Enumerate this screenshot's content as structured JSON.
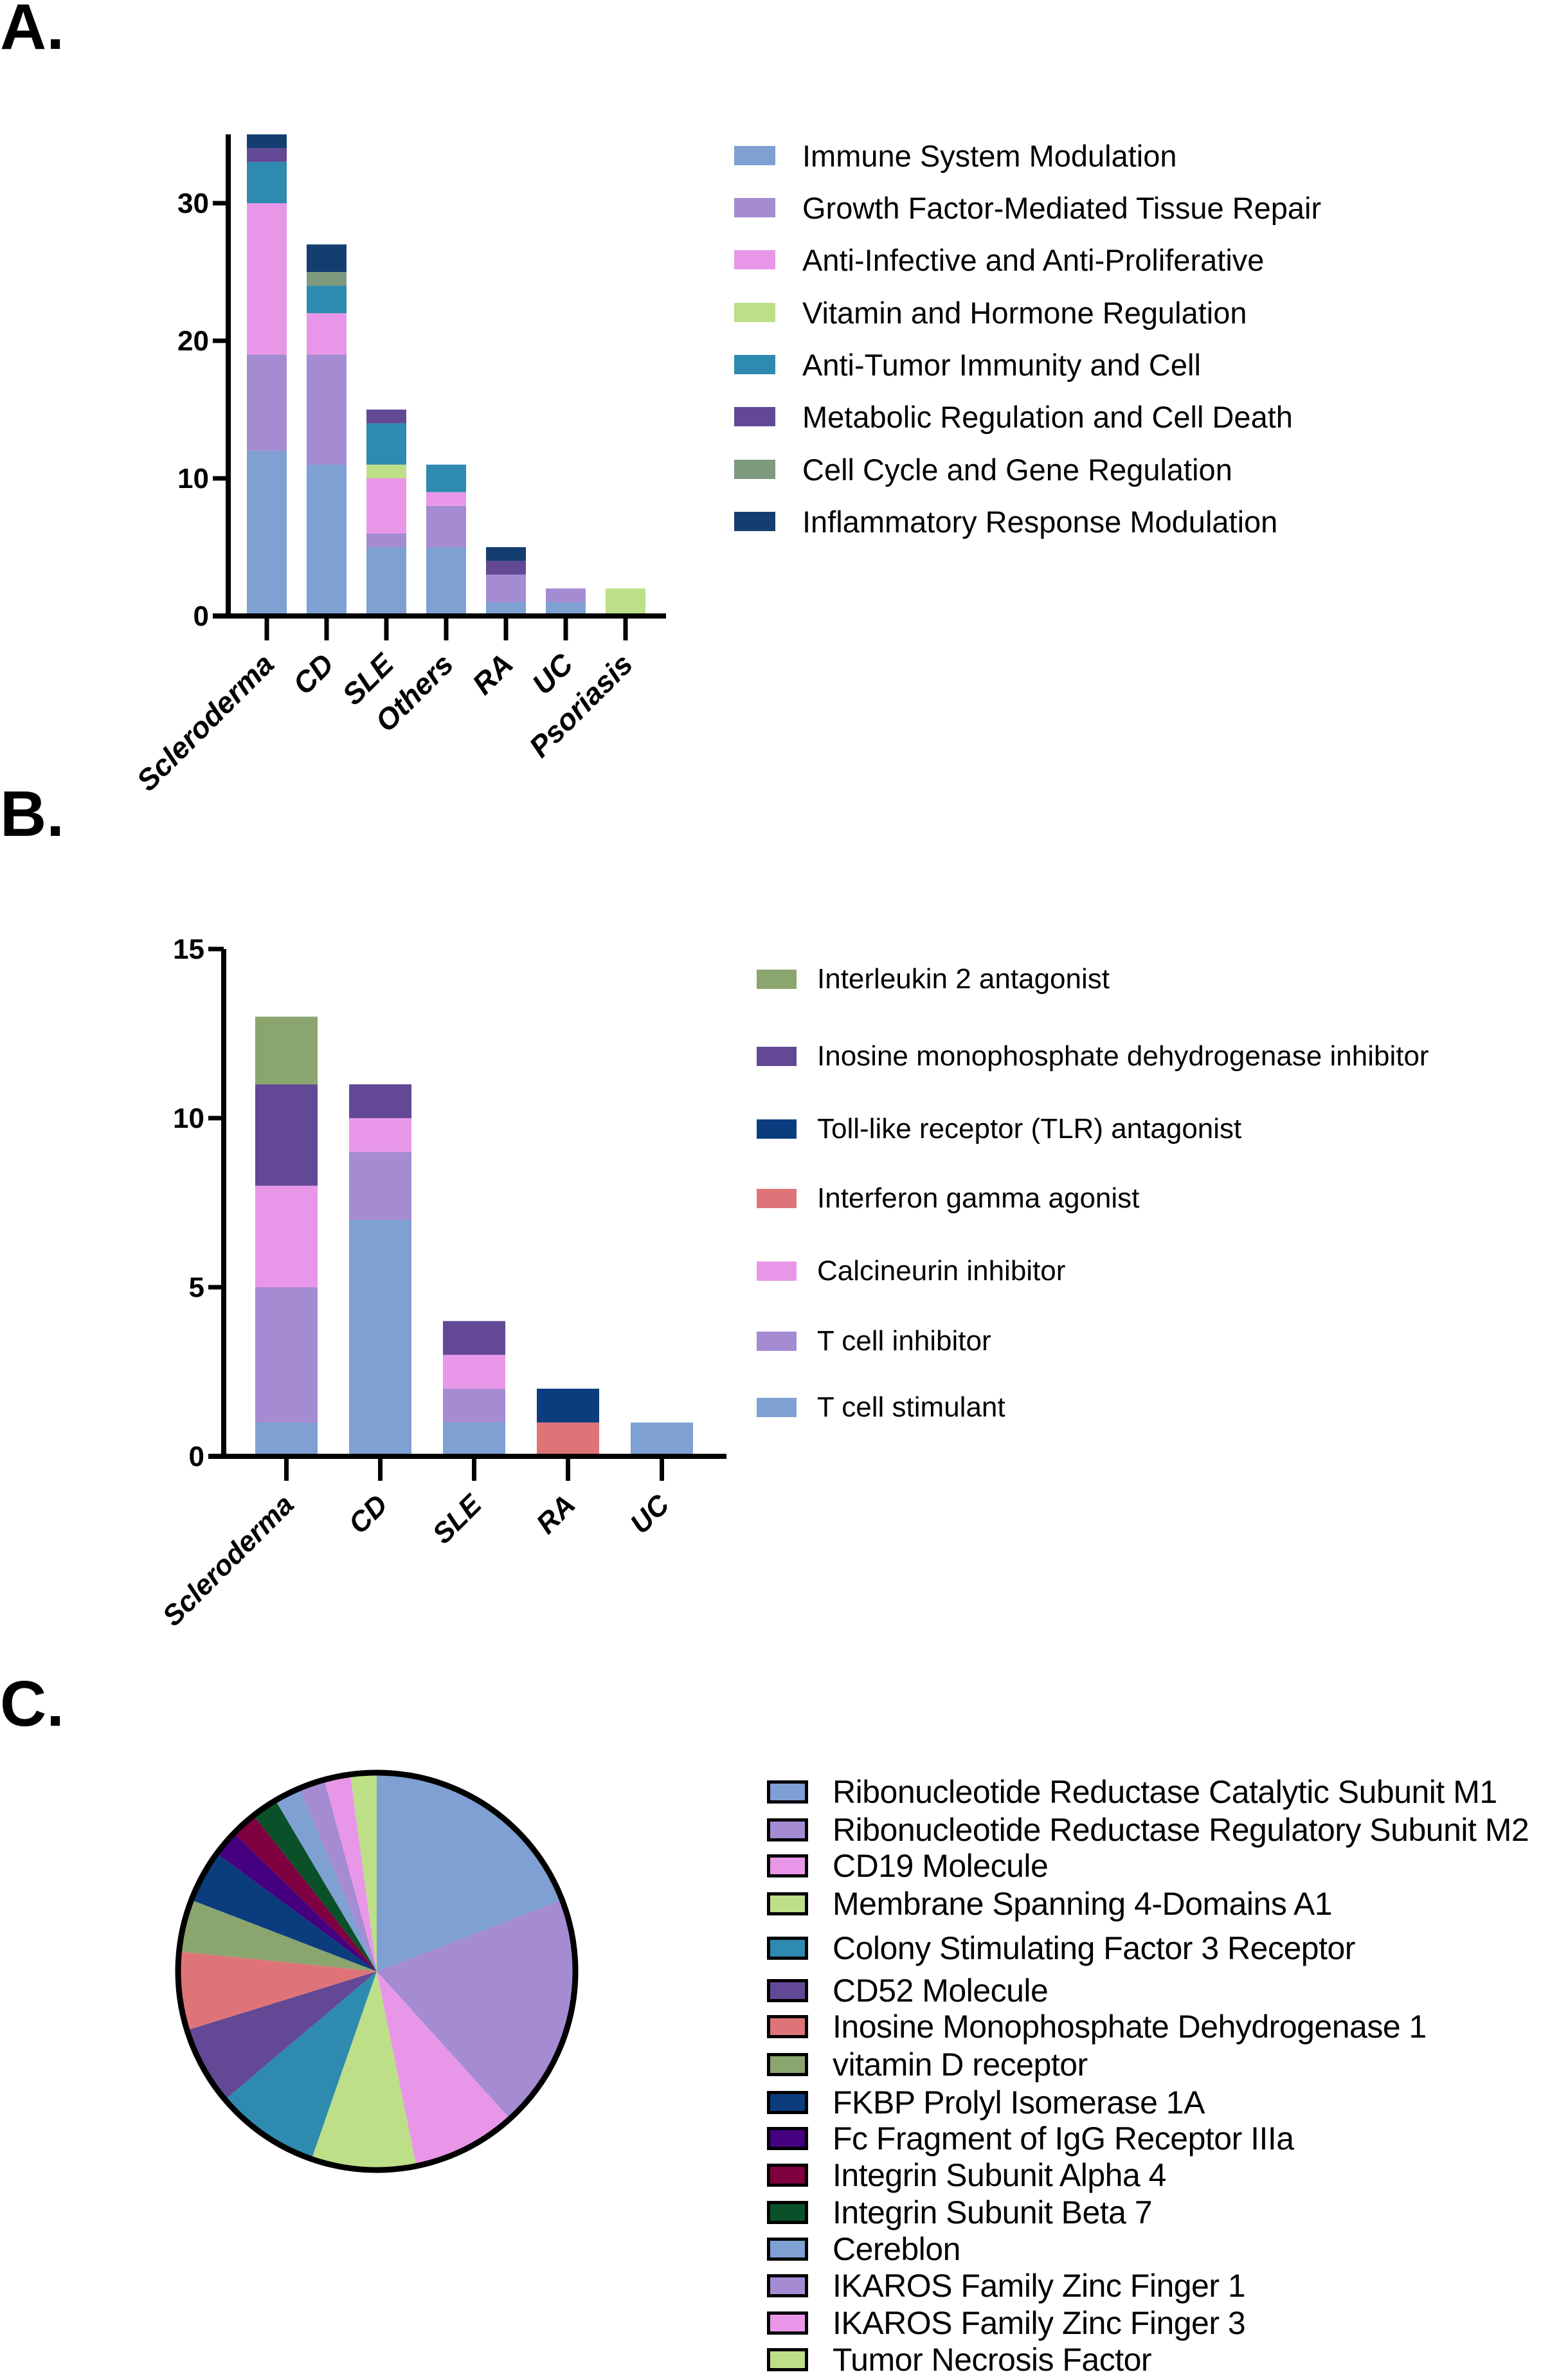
{
  "panels": {
    "a": "A.",
    "b": "B.",
    "c": "C."
  },
  "chart_data": [
    {
      "type": "bar",
      "stacked": true,
      "categories": [
        "Scleroderma",
        "CD",
        "SLE",
        "Others",
        "RA",
        "UC",
        "Psoriasis"
      ],
      "ylim": [
        0,
        35
      ],
      "yticks": [
        0,
        10,
        20,
        30
      ],
      "legend": "right",
      "series": [
        {
          "name": "Immune System Modulation",
          "color": "#7EA0D3",
          "values": [
            12,
            11,
            5,
            5,
            1,
            1,
            0
          ]
        },
        {
          "name": "Growth Factor-Mediated Tissue Repair",
          "color": "#A48BD2",
          "values": [
            7,
            8,
            1,
            3,
            2,
            1,
            0
          ]
        },
        {
          "name": "Anti-Infective and Anti-Proliferative",
          "color": "#E897E8",
          "values": [
            11,
            3,
            4,
            1,
            0,
            0,
            0
          ]
        },
        {
          "name": "Vitamin and Hormone Regulation",
          "color": "#BDDF87",
          "values": [
            0,
            0,
            1,
            0,
            0,
            0,
            2
          ]
        },
        {
          "name": "Anti-Tumor Immunity and Cell",
          "color": "#2E8AAF",
          "values": [
            3,
            2,
            3,
            2,
            0,
            0,
            0
          ]
        },
        {
          "name": "Metabolic Regulation and Cell Death",
          "color": "#634995",
          "values": [
            1,
            0,
            1,
            0,
            1,
            0,
            0
          ]
        },
        {
          "name": "Cell Cycle and Gene Regulation",
          "color": "#7E9A7F",
          "values": [
            0,
            1,
            0,
            0,
            0,
            0,
            0
          ]
        },
        {
          "name": "Inflammatory Response Modulation",
          "color": "#143E6F",
          "values": [
            1,
            2,
            0,
            0,
            1,
            0,
            0
          ]
        }
      ]
    },
    {
      "type": "bar",
      "stacked": true,
      "categories": [
        "Scleroderma",
        "CD",
        "SLE",
        "RA",
        "UC"
      ],
      "ylim": [
        0,
        15
      ],
      "yticks": [
        0,
        5,
        10,
        15
      ],
      "legend": "right",
      "series": [
        {
          "name": "T cell stimulant",
          "color": "#7EA0D3",
          "values": [
            1,
            7,
            1,
            0,
            1
          ]
        },
        {
          "name": "T cell inhibitor",
          "color": "#A48BD2",
          "values": [
            4,
            2,
            1,
            0,
            0
          ]
        },
        {
          "name": "Calcineurin inhibitor",
          "color": "#E897E8",
          "values": [
            3,
            1,
            1,
            0,
            0
          ]
        },
        {
          "name": "Interferon gamma agonist",
          "color": "#DF7478",
          "values": [
            0,
            0,
            0,
            1,
            0
          ]
        },
        {
          "name": "Toll-like receptor (TLR) antagonist",
          "color": "#0A3C7E",
          "values": [
            0,
            0,
            0,
            1,
            0
          ]
        },
        {
          "name": "Inosine monophosphate dehydrogenase inhibitor",
          "color": "#634995",
          "values": [
            3,
            1,
            1,
            0,
            0
          ]
        },
        {
          "name": "Interleukin 2 antagonist",
          "color": "#8BA56E",
          "values": [
            2,
            0,
            0,
            0,
            0
          ]
        }
      ]
    },
    {
      "type": "pie",
      "legend": "right",
      "slices": [
        {
          "label": "Ribonucleotide Reductase Catalytic Subunit M1",
          "value": 9,
          "color": "#7EA0D3"
        },
        {
          "label": "Ribonucleotide Reductase Regulatory Subunit M2",
          "value": 9,
          "color": "#A48BD2"
        },
        {
          "label": "CD19 Molecule",
          "value": 4,
          "color": "#E897E8"
        },
        {
          "label": "Membrane Spanning 4-Domains A1",
          "value": 4,
          "color": "#BDDF87"
        },
        {
          "label": "Colony Stimulating Factor 3 Receptor",
          "value": 4,
          "color": "#2E8AAF"
        },
        {
          "label": "CD52 Molecule",
          "value": 3,
          "color": "#634995"
        },
        {
          "label": "Inosine Monophosphate Dehydrogenase 1",
          "value": 3,
          "color": "#DF7478"
        },
        {
          "label": "vitamin D receptor",
          "value": 2,
          "color": "#8BA56E"
        },
        {
          "label": "FKBP Prolyl Isomerase 1A",
          "value": 2,
          "color": "#0A3C7E"
        },
        {
          "label": "Fc Fragment of IgG Receptor IIIa",
          "value": 1,
          "color": "#44007E"
        },
        {
          "label": "Integrin Subunit Alpha 4",
          "value": 1,
          "color": "#7E003E"
        },
        {
          "label": "Integrin Subunit Beta 7",
          "value": 1,
          "color": "#0A5028"
        },
        {
          "label": "Cereblon",
          "value": 1,
          "color": "#7EA0D3"
        },
        {
          "label": "IKAROS Family Zinc Finger 1",
          "value": 1,
          "color": "#A48BD2"
        },
        {
          "label": "IKAROS Family Zinc Finger 3",
          "value": 1,
          "color": "#E897E8"
        },
        {
          "label": "Tumor Necrosis Factor",
          "value": 1,
          "color": "#BDDF87"
        }
      ]
    }
  ]
}
